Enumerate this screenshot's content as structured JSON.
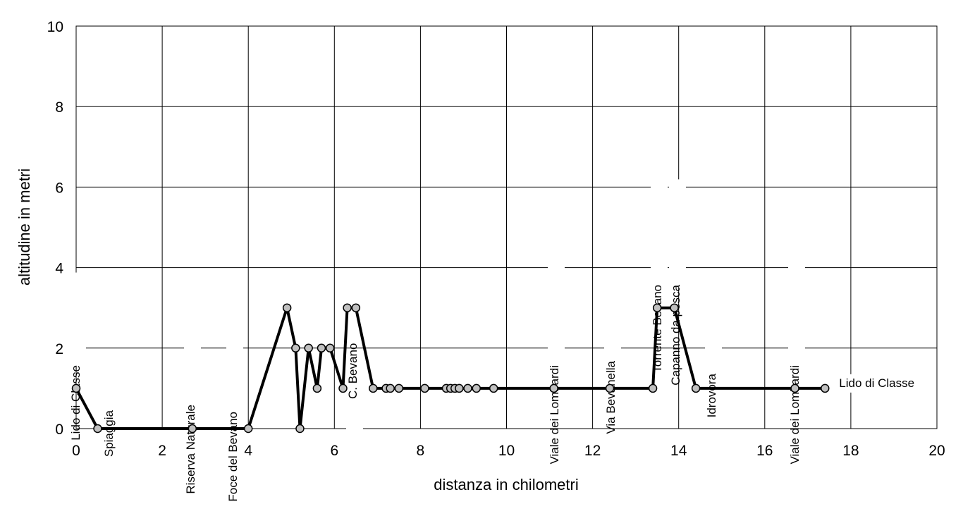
{
  "chart_data": {
    "type": "line",
    "title": "",
    "xlabel": "distanza in chilometri",
    "ylabel": "altitudine  in metri",
    "xlim": [
      0,
      20
    ],
    "ylim": [
      0,
      10
    ],
    "x_ticks": [
      "0",
      "2",
      "4",
      "6",
      "8",
      "10",
      "12",
      "14",
      "16",
      "18",
      "20"
    ],
    "y_ticks": [
      "0",
      "2",
      "4",
      "6",
      "8",
      "10"
    ],
    "grid": true,
    "legend": "none",
    "line_color": "#000000",
    "marker_color": "#c0c0c0",
    "series": [
      {
        "x": [
          0,
          0.5,
          2.7,
          4.0,
          4.9,
          5.1,
          5.2,
          5.4,
          5.6,
          5.7,
          5.9,
          6.2,
          6.3,
          6.5,
          6.9,
          7.2,
          7.3,
          7.5,
          8.1,
          8.6,
          8.7,
          8.8,
          8.9,
          9.1,
          9.3,
          9.7,
          11.1,
          12.4,
          13.4,
          13.5,
          13.9,
          14.4,
          16.7,
          17.4
        ],
        "y": [
          1,
          0,
          0,
          0,
          3,
          2,
          0,
          2,
          1,
          2,
          2,
          1,
          3,
          3,
          1,
          1,
          1,
          1,
          1,
          1,
          1,
          1,
          1,
          1,
          1,
          1,
          1,
          1,
          1,
          3,
          3,
          1,
          1,
          1
        ]
      }
    ],
    "annotations": [
      {
        "text": "Lido di Classe",
        "x": 0.0,
        "y": 1.0,
        "orientation": "vertical"
      },
      {
        "text": "Spiaggia",
        "x": 0.5,
        "y": 0.0,
        "orientation": "vertical"
      },
      {
        "text": "Riserva Naturale",
        "x": 2.7,
        "y": 0.0,
        "orientation": "vertical"
      },
      {
        "text": "Foce del Bevano",
        "x": 4.0,
        "y": 0.0,
        "orientation": "vertical"
      },
      {
        "text": "C. Bevano",
        "x": 6.5,
        "y": 1.0,
        "orientation": "vertical"
      },
      {
        "text": "Viale dei Lombardi",
        "x": 11.1,
        "y": 1.0,
        "orientation": "vertical"
      },
      {
        "text": "Via Bevanella",
        "x": 12.4,
        "y": 1.0,
        "orientation": "vertical"
      },
      {
        "text": "Torrente Bevano",
        "x": 13.5,
        "y": 3.0,
        "orientation": "vertical"
      },
      {
        "text": "Capanno da pesca",
        "x": 13.9,
        "y": 3.0,
        "orientation": "vertical"
      },
      {
        "text": "Idrovora",
        "x": 14.4,
        "y": 1.0,
        "orientation": "vertical"
      },
      {
        "text": "Viale dei Lombardi",
        "x": 16.7,
        "y": 1.0,
        "orientation": "vertical"
      },
      {
        "text": "Lido di Classe",
        "x": 17.4,
        "y": 1.0,
        "orientation": "horizontal"
      }
    ]
  }
}
